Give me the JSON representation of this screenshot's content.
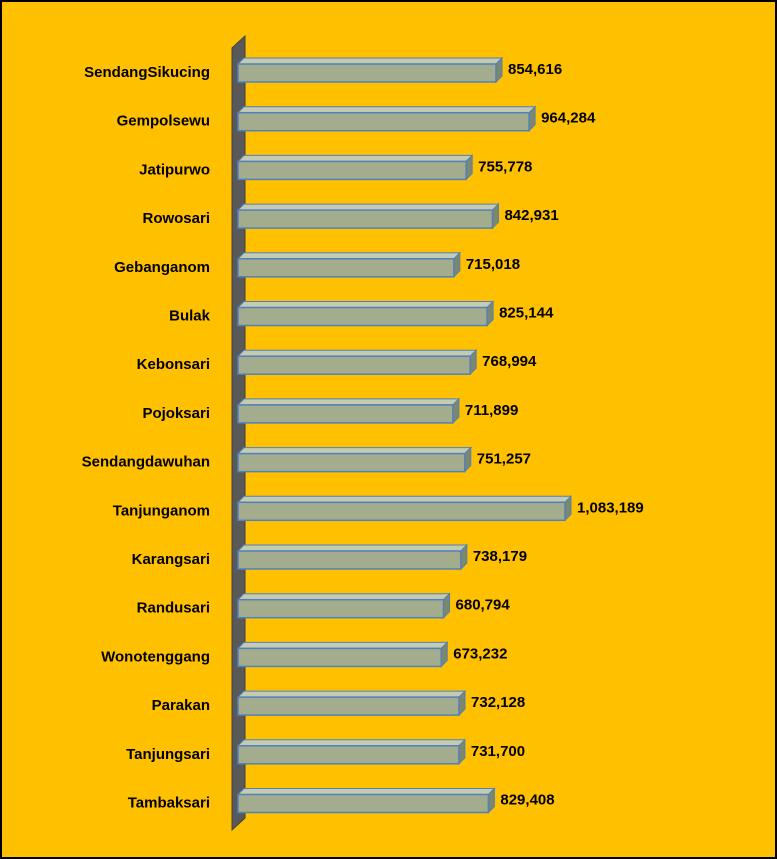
{
  "chart_data": {
    "type": "bar",
    "orientation": "horizontal",
    "categories": [
      "SendangSikucing",
      "Gempolsewu",
      "Jatipurwo",
      "Rowosari",
      "Gebanganom",
      "Bulak",
      "Kebonsari",
      "Pojoksari",
      "Sendangdawuhan",
      "Tanjunganom",
      "Karangsari",
      "Randusari",
      "Wonotenggang",
      "Parakan",
      "Tanjungsari",
      "Tambaksari"
    ],
    "values": [
      854616,
      964284,
      755778,
      842931,
      715018,
      825144,
      768994,
      711899,
      751257,
      1083189,
      738179,
      680794,
      673232,
      732128,
      731700,
      829408
    ],
    "value_labels": [
      "854,616",
      "964,284",
      "755,778",
      "842,931",
      "715,018",
      "825,144",
      "768,994",
      "711,899",
      "751,257",
      "1,083,189",
      "738,179",
      "680,794",
      "673,232",
      "732,128",
      "731,700",
      "829,408"
    ],
    "color": "#a3ad8e",
    "edge_color": "#4f81bd",
    "background": "#ffc000"
  }
}
